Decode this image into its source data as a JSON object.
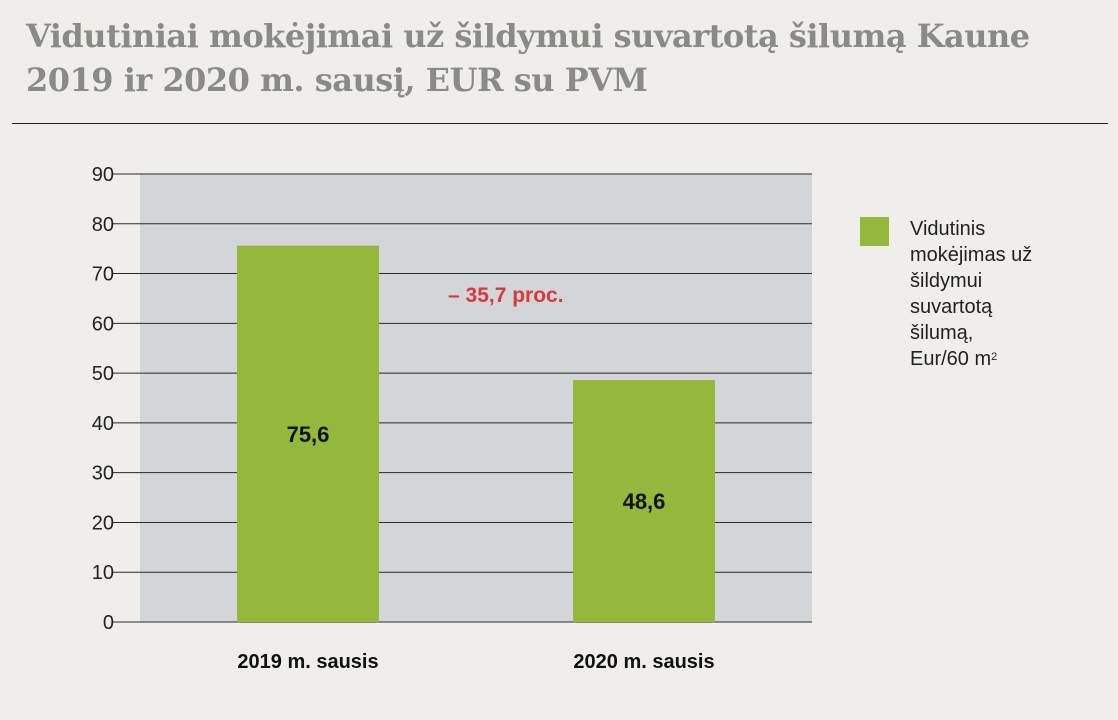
{
  "title_line1": "Vidutiniai mokėjimai už šildymui suvartotą šilumą Kaune",
  "title_line2": "2019 ir 2020 m. sausį, EUR su PVM",
  "annotation": "– 35,7 proc.",
  "legend": {
    "lines": [
      "Vidutinis",
      "mokėjimas už",
      "šildymui",
      "suvartotą",
      "šilumą,"
    ],
    "last_line": "Eur/60 m",
    "superscript": "2"
  },
  "colors": {
    "bar": "#93b83b",
    "plot_bg": "#d3d6d8",
    "page_bg": "#efeeea",
    "title": "#8a8a86",
    "annotation": "#d83a3a"
  },
  "chart_data": {
    "type": "bar",
    "categories": [
      "2019 m. sausis",
      "2020 m. sausis"
    ],
    "values": [
      75.6,
      48.6
    ],
    "data_labels": [
      "75,6",
      "48,6"
    ],
    "ylim": [
      0,
      90
    ],
    "yticks": [
      0,
      10,
      20,
      30,
      40,
      50,
      60,
      70,
      80,
      90
    ],
    "grid": true,
    "legend_position": "right"
  }
}
